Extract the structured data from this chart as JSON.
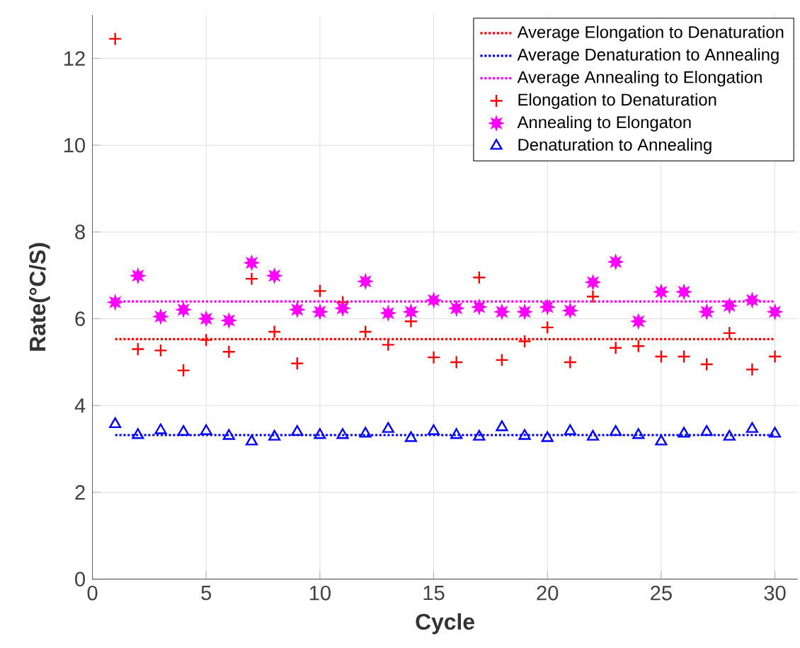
{
  "chart_data": {
    "type": "scatter",
    "xlabel": "Cycle",
    "ylabel": "Rate(°C/S)",
    "xlim": [
      0,
      31
    ],
    "ylim": [
      0,
      13
    ],
    "xticks": [
      0,
      5,
      10,
      15,
      20,
      25,
      30
    ],
    "yticks": [
      0,
      2,
      4,
      6,
      8,
      10,
      12
    ],
    "grid": true,
    "legend": "top right",
    "series": [
      {
        "name": "Average Elongation to Denaturation",
        "type": "line",
        "line_style": "dotted",
        "marker": "none",
        "color": "#ff0000",
        "x": [
          1,
          30
        ],
        "values": [
          5.53,
          5.53
        ]
      },
      {
        "name": "Average Denaturation to Annealing",
        "type": "line",
        "line_style": "dotted",
        "marker": "none",
        "color": "#0000ff",
        "x": [
          1,
          30
        ],
        "values": [
          3.32,
          3.32
        ]
      },
      {
        "name": "Average Annealing to Elongation",
        "type": "line",
        "line_style": "dotted",
        "marker": "none",
        "color": "#ff00ff",
        "x": [
          1,
          30
        ],
        "values": [
          6.4,
          6.4
        ]
      },
      {
        "name": "Elongation to Denaturation",
        "marker": "cross",
        "color": "#ff0000",
        "x": [
          1,
          2,
          3,
          4,
          5,
          6,
          7,
          8,
          9,
          10,
          11,
          12,
          13,
          14,
          15,
          16,
          17,
          18,
          19,
          20,
          21,
          22,
          23,
          24,
          25,
          26,
          27,
          28,
          29,
          30
        ],
        "values": [
          12.45,
          5.3,
          5.27,
          4.81,
          5.51,
          5.24,
          6.92,
          5.7,
          4.97,
          6.64,
          6.38,
          5.7,
          5.4,
          5.94,
          5.11,
          5.0,
          6.95,
          5.05,
          5.48,
          5.8,
          5.0,
          6.51,
          5.33,
          5.37,
          5.13,
          5.13,
          4.95,
          5.67,
          4.83,
          5.13
        ]
      },
      {
        "name": "Annealing to Elongaton",
        "marker": "star",
        "color": "#ff00ff",
        "x": [
          1,
          2,
          3,
          4,
          5,
          6,
          7,
          8,
          9,
          10,
          11,
          12,
          13,
          14,
          15,
          16,
          17,
          18,
          19,
          20,
          21,
          22,
          23,
          24,
          25,
          26,
          27,
          28,
          29,
          30
        ],
        "values": [
          6.38,
          6.99,
          6.05,
          6.21,
          6.0,
          5.96,
          7.29,
          6.99,
          6.21,
          6.16,
          6.24,
          6.86,
          6.13,
          6.16,
          6.43,
          6.24,
          6.27,
          6.16,
          6.16,
          6.27,
          6.19,
          6.84,
          7.31,
          5.94,
          6.62,
          6.62,
          6.16,
          6.3,
          6.43,
          6.16
        ]
      },
      {
        "name": "Denaturation to Annealing",
        "marker": "triangle",
        "color": "#0000ff",
        "x": [
          1,
          2,
          3,
          4,
          5,
          6,
          7,
          8,
          9,
          10,
          11,
          12,
          13,
          14,
          15,
          16,
          17,
          18,
          19,
          20,
          21,
          22,
          23,
          24,
          25,
          26,
          27,
          28,
          29,
          30
        ],
        "values": [
          3.57,
          3.32,
          3.43,
          3.39,
          3.41,
          3.3,
          3.17,
          3.28,
          3.39,
          3.32,
          3.32,
          3.35,
          3.46,
          3.25,
          3.41,
          3.32,
          3.28,
          3.5,
          3.3,
          3.25,
          3.41,
          3.28,
          3.39,
          3.32,
          3.17,
          3.35,
          3.39,
          3.28,
          3.46,
          3.35
        ]
      }
    ]
  }
}
